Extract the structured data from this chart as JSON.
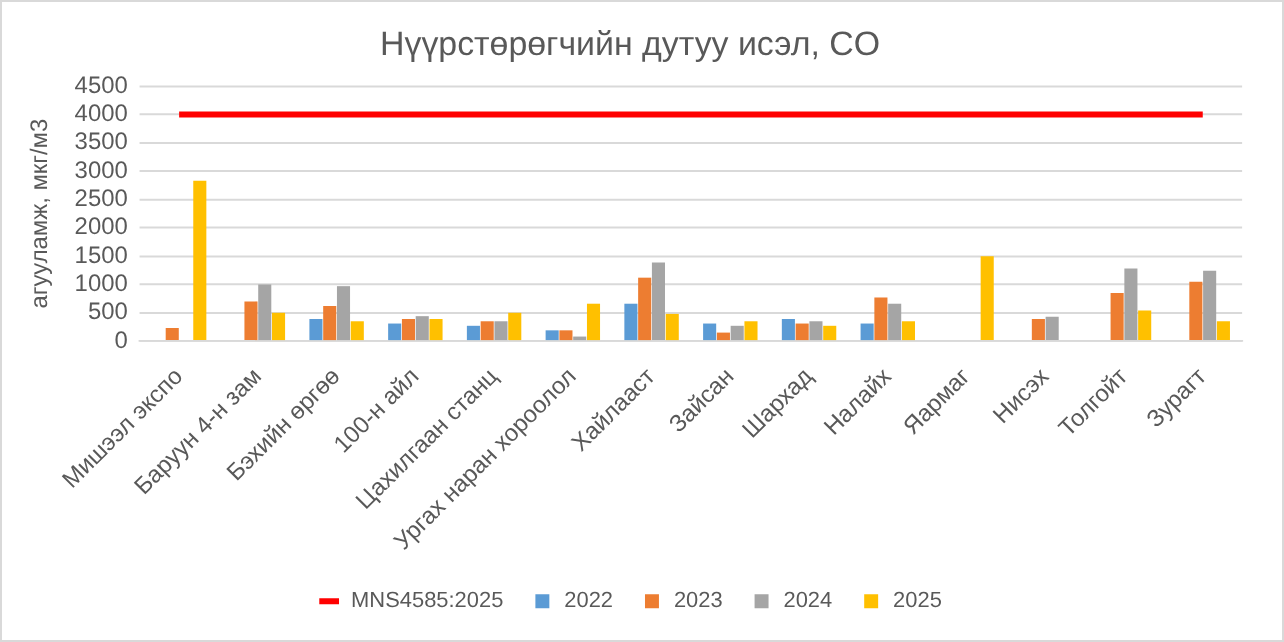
{
  "chart_data": {
    "type": "bar",
    "title": "Нүүрстөрөгчийн дутуу исэл, CO",
    "ylabel": "агууламж, мкг/м3",
    "categories": [
      "Мишээл экспо",
      "Баруун 4-н зам",
      "Бэхийн өргөө",
      "100-н айл",
      "Цахилгаан станц",
      "Ургах наран хороолол",
      "Хайлааст",
      "Зайсан",
      "Шархад",
      "Налайх",
      "Яармаг",
      "Нисэх",
      "Толгойт",
      "Зурагт"
    ],
    "series": [
      {
        "name": "2022",
        "color": "#5b9bd5",
        "values": [
          null,
          null,
          390,
          310,
          270,
          190,
          660,
          310,
          390,
          310,
          null,
          null,
          null,
          null
        ]
      },
      {
        "name": "2023",
        "color": "#ed7d31",
        "values": [
          230,
          700,
          620,
          390,
          350,
          190,
          1120,
          150,
          310,
          770,
          null,
          390,
          850,
          1050
        ]
      },
      {
        "name": "2024",
        "color": "#a5a5a5",
        "values": [
          null,
          1000,
          970,
          440,
          350,
          80,
          1390,
          270,
          350,
          660,
          null,
          430,
          1280,
          1240
        ]
      },
      {
        "name": "2025",
        "color": "#ffc000",
        "values": [
          2830,
          500,
          350,
          390,
          500,
          660,
          480,
          350,
          270,
          350,
          1500,
          null,
          540,
          350
        ]
      },
      {
        "name": "MNS4585:2025",
        "type": "line",
        "color": "#ff0000",
        "values": [
          4000,
          4000,
          4000,
          4000,
          4000,
          4000,
          4000,
          4000,
          4000,
          4000,
          4000,
          4000,
          4000,
          4000
        ]
      }
    ],
    "ylim": [
      0,
      4500
    ],
    "yticks": [
      0,
      500,
      1000,
      1500,
      2000,
      2500,
      3000,
      3500,
      4000,
      4500
    ],
    "grid": "y",
    "legend": "bottom",
    "marker": "none"
  }
}
